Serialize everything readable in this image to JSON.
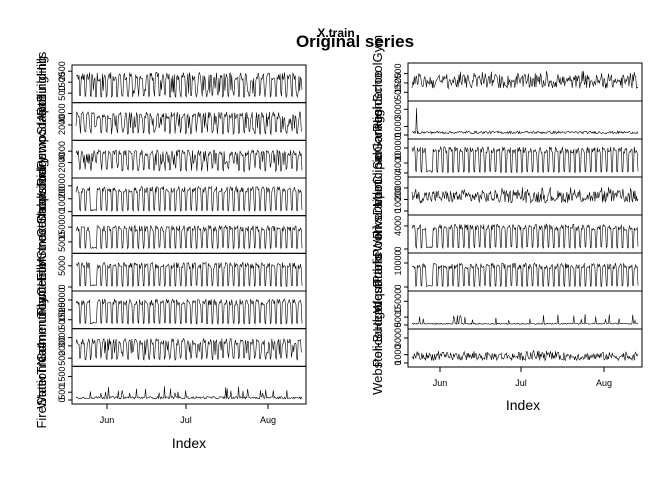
{
  "chart_data": {
    "type": "line",
    "title": "Original series",
    "subtitle": "X.train",
    "xlabel": "Index",
    "x_ticks": [
      "Jun",
      "Jul",
      "Aug"
    ],
    "x_range": [
      "2021-05-10",
      "2021-08-21"
    ],
    "panels": [
      {
        "column": "left",
        "series": [
          {
            "name": "RollingHills",
            "yticks": [
              500,
              1500,
              2500
            ],
            "ylim": [
              0,
              2700
            ],
            "pattern": "weekly-spikes",
            "low": 400,
            "high": 2400
          },
          {
            "name": "RidgewoodAptBuilding",
            "yticks": [
              2000,
              4000
            ],
            "ylim": [
              0,
              5200
            ],
            "pattern": "weekly-spikes",
            "low": 1200,
            "high": 4300
          },
          {
            "name": "OakwoodPumpStation",
            "yticks": [
              2000,
              4000
            ],
            "ylim": [
              0,
              5200
            ],
            "pattern": "weekly-spikes",
            "low": 1500,
            "high": 4200
          },
          {
            "name": "CentralLibrary",
            "yticks": [
              0,
              10000,
              20000
            ],
            "ylim": [
              0,
              23000
            ],
            "pattern": "weekday-blocks",
            "low": 1000,
            "high": 19500
          },
          {
            "name": "ElmStreetShops",
            "yticks": [
              5000,
              15000
            ],
            "ylim": [
              0,
              20000
            ],
            "pattern": "weekday-blocks",
            "low": 1000,
            "high": 16000
          },
          {
            "name": "TownHallAnnex",
            "yticks": [
              0,
              5000
            ],
            "ylim": [
              0,
              7000
            ],
            "pattern": "weekday-blocks",
            "low": 300,
            "high": 5800
          },
          {
            "name": "CommunityCenter",
            "yticks": [
              5000,
              15000,
              25000
            ],
            "ylim": [
              0,
              30000
            ],
            "pattern": "weekday-blocks",
            "low": 1500,
            "high": 26000
          },
          {
            "name": "WaterTreatmentPlant",
            "yticks": [
              500,
              2000,
              3000
            ],
            "ylim": [
              0,
              3600
            ],
            "pattern": "weekly-spikes",
            "low": 900,
            "high": 2900
          },
          {
            "name": "FireStationNo4",
            "yticks": [
              0,
              500,
              1500
            ],
            "ylim": [
              0,
              1900
            ],
            "pattern": "sparse-spikes",
            "low": 150,
            "high": 900
          }
        ]
      },
      {
        "column": "right",
        "series": [
          {
            "name": "HighSchoolGym",
            "yticks": [
              500,
              1500,
              2500
            ],
            "ylim": [
              0,
              3200
            ],
            "pattern": "dense-noise",
            "low": 900,
            "high": 2400
          },
          {
            "name": "SeniorResidence",
            "yticks": [
              0,
              1000,
              3000
            ],
            "ylim": [
              0,
              3500
            ],
            "pattern": "low-flat",
            "low": 150,
            "high": 450
          },
          {
            "name": "MunicipalGarage",
            "yticks": [
              0,
              4000,
              10000
            ],
            "ylim": [
              0,
              12000
            ],
            "pattern": "weekday-blocks",
            "low": 500,
            "high": 10500
          },
          {
            "name": "RiversideClinic",
            "yticks": [
              0,
              10000,
              20000
            ],
            "ylim": [
              0,
              26000
            ],
            "pattern": "dense-noise",
            "low": 7000,
            "high": 18000
          },
          {
            "name": "PublicWorksDepot",
            "yticks": [
              0,
              4000
            ],
            "ylim": [
              0,
              5200
            ],
            "pattern": "weekday-blocks",
            "low": 300,
            "high": 4300
          },
          {
            "name": "WestParkPool",
            "yticks": [
              0,
              10000
            ],
            "ylim": [
              0,
              12500
            ],
            "pattern": "weekday-blocks",
            "low": 500,
            "high": 10000
          },
          {
            "name": "PoliceHeadquarters",
            "yticks": [
              0,
              5000,
              15000
            ],
            "ylim": [
              0,
              19000
            ],
            "pattern": "sparse-spikes",
            "low": 800,
            "high": 7000
          },
          {
            "name": "Webster-Budget",
            "yticks": [
              0,
              1000,
              3000
            ],
            "ylim": [
              0,
              3600
            ],
            "pattern": "dense-noise",
            "low": 300,
            "high": 1300
          }
        ]
      }
    ],
    "grid": false,
    "legend": "none"
  }
}
